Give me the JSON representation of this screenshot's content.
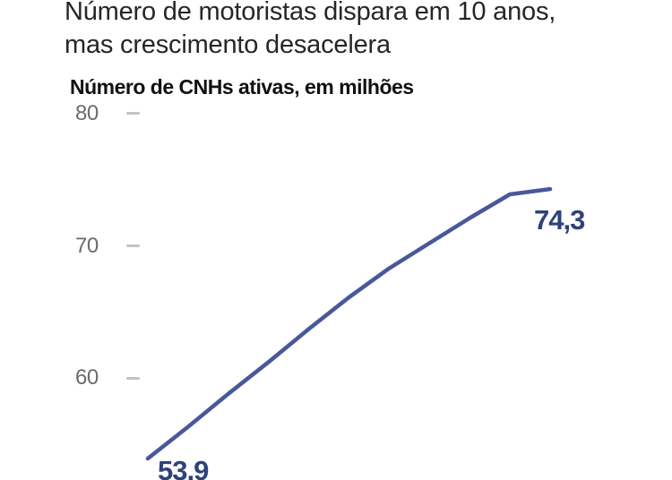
{
  "header": {
    "title_line1": "Número de motoristas dispara em 10 anos,",
    "title_line2": "mas crescimento desacelera"
  },
  "chart": {
    "subtitle": "Número de CNHs ativas, em milhões",
    "yticks": [
      {
        "label": "80"
      },
      {
        "label": "70"
      },
      {
        "label": "60"
      }
    ],
    "start_value_label": "53,9",
    "end_value_label": "74,3",
    "colors": {
      "line": "#48589a",
      "value_label": "#2e4278",
      "axis_label": "#6b6b6b",
      "tick_dash": "#c3c3c3",
      "title_text": "#262626",
      "background": "#ffffff"
    }
  },
  "chart_data": {
    "type": "line",
    "title": "Número de motoristas dispara em 10 anos, mas crescimento desacelera",
    "ylabel": "Número de CNHs ativas, em milhões",
    "x_index": [
      0,
      1,
      2,
      3,
      4,
      5,
      6,
      7,
      8,
      9,
      10
    ],
    "x_labels_visible": false,
    "series": [
      {
        "name": "CNHs ativas (milhões)",
        "values": [
          53.9,
          56.3,
          58.8,
          61.2,
          63.7,
          66.1,
          68.3,
          70.2,
          72.1,
          73.9,
          74.3
        ],
        "endpoints_exact_others_estimated": true
      }
    ],
    "labeled_points": [
      {
        "index": 0,
        "value": 53.9,
        "label": "53,9"
      },
      {
        "index": 10,
        "value": 74.3,
        "label": "74,3"
      }
    ],
    "yticks": [
      80,
      70,
      60
    ],
    "ylim": [
      52,
      82
    ],
    "grid": false,
    "legend": false
  }
}
